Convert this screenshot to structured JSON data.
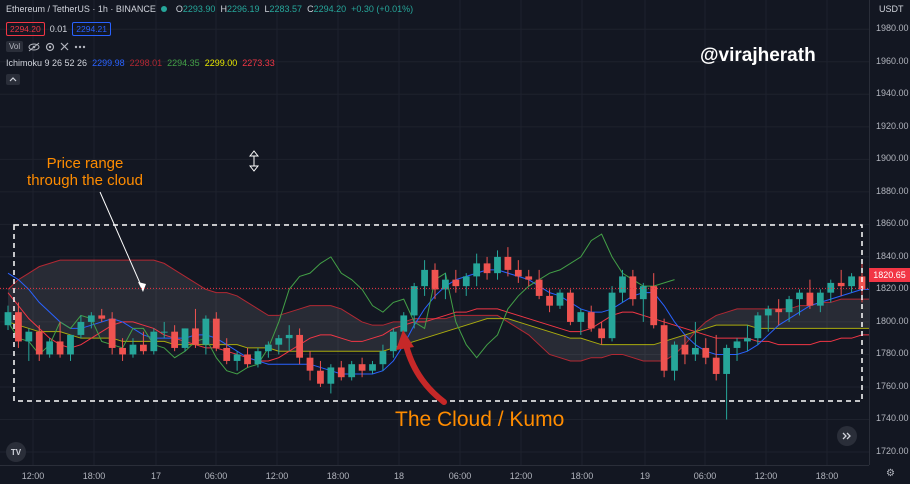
{
  "header": {
    "symbol": "Ethereum / TetherUS · 1h · BINANCE",
    "ohlc": {
      "o_label": "O",
      "o": "2293.90",
      "h_label": "H",
      "h": "2296.19",
      "l_label": "L",
      "l": "2283.57",
      "c_label": "C",
      "c": "2294.20",
      "change": "+0.30 (+0.01%)"
    },
    "sell_price": "2294.20",
    "spread": "0.01",
    "buy_price": "2294.21"
  },
  "toolbar": {
    "vol_label": "Vol"
  },
  "indicator": {
    "name": "Ichimoku 9 26 52 26",
    "values": [
      "2299.98",
      "2298.01",
      "2294.35",
      "2299.00",
      "2273.33"
    ],
    "colors": [
      "#2962ff",
      "#b22833",
      "#43a047",
      "#e6e600",
      "#f23645"
    ]
  },
  "watermark": "@virajherath",
  "annotations": {
    "price_range": "Price range\nthrough the cloud",
    "cloud": "The Cloud / Kumo"
  },
  "price_axis": {
    "currency": "USDT",
    "ticks": [
      "1980.00",
      "1960.00",
      "1940.00",
      "1920.00",
      "1900.00",
      "1880.00",
      "1860.00",
      "1840.00",
      "1820.00",
      "1800.00",
      "1780.00",
      "1760.00",
      "1740.00",
      "1720.00"
    ],
    "current_price": "1820.65"
  },
  "time_axis": {
    "labels": [
      "12:00",
      "18:00",
      "17",
      "06:00",
      "12:00",
      "18:00",
      "18",
      "06:00",
      "12:00",
      "18:00",
      "19",
      "06:00",
      "12:00",
      "18:00"
    ]
  },
  "colors": {
    "up": "#26a69a",
    "down": "#ef5350",
    "background": "#131722",
    "annotation": "#ff8c00",
    "arrow": "#c62828"
  },
  "chart_data": {
    "type": "candlestick",
    "ylim": [
      1712,
      1998
    ],
    "candles": [
      [
        1798,
        1810,
        1795,
        1806
      ],
      [
        1806,
        1812,
        1784,
        1788
      ],
      [
        1788,
        1796,
        1776,
        1794
      ],
      [
        1794,
        1798,
        1776,
        1780
      ],
      [
        1780,
        1790,
        1778,
        1788
      ],
      [
        1788,
        1800,
        1778,
        1780
      ],
      [
        1780,
        1792,
        1776,
        1792
      ],
      [
        1792,
        1804,
        1790,
        1800
      ],
      [
        1800,
        1806,
        1796,
        1804
      ],
      [
        1804,
        1808,
        1800,
        1802
      ],
      [
        1802,
        1806,
        1780,
        1784
      ],
      [
        1784,
        1790,
        1776,
        1780
      ],
      [
        1780,
        1790,
        1778,
        1786
      ],
      [
        1786,
        1794,
        1780,
        1782
      ],
      [
        1782,
        1796,
        1780,
        1794
      ],
      [
        1794,
        1800,
        1790,
        1794
      ],
      [
        1794,
        1798,
        1782,
        1784
      ],
      [
        1784,
        1796,
        1782,
        1796
      ],
      [
        1796,
        1808,
        1784,
        1786
      ],
      [
        1786,
        1804,
        1780,
        1802
      ],
      [
        1802,
        1806,
        1782,
        1784
      ],
      [
        1784,
        1790,
        1774,
        1776
      ],
      [
        1776,
        1782,
        1770,
        1780
      ],
      [
        1780,
        1784,
        1772,
        1774
      ],
      [
        1774,
        1784,
        1772,
        1782
      ],
      [
        1782,
        1788,
        1778,
        1786
      ],
      [
        1786,
        1792,
        1780,
        1790
      ],
      [
        1790,
        1798,
        1782,
        1792
      ],
      [
        1792,
        1796,
        1774,
        1778
      ],
      [
        1778,
        1782,
        1764,
        1770
      ],
      [
        1770,
        1776,
        1760,
        1762
      ],
      [
        1762,
        1774,
        1756,
        1772
      ],
      [
        1772,
        1776,
        1764,
        1766
      ],
      [
        1766,
        1776,
        1764,
        1774
      ],
      [
        1774,
        1778,
        1766,
        1770
      ],
      [
        1770,
        1776,
        1768,
        1774
      ],
      [
        1774,
        1786,
        1770,
        1782
      ],
      [
        1782,
        1796,
        1778,
        1794
      ],
      [
        1794,
        1806,
        1790,
        1804
      ],
      [
        1804,
        1824,
        1796,
        1822
      ],
      [
        1822,
        1838,
        1816,
        1832
      ],
      [
        1832,
        1836,
        1814,
        1820
      ],
      [
        1820,
        1830,
        1814,
        1826
      ],
      [
        1826,
        1832,
        1818,
        1822
      ],
      [
        1822,
        1830,
        1816,
        1828
      ],
      [
        1828,
        1842,
        1822,
        1836
      ],
      [
        1836,
        1840,
        1826,
        1830
      ],
      [
        1830,
        1844,
        1826,
        1840
      ],
      [
        1840,
        1846,
        1828,
        1832
      ],
      [
        1832,
        1838,
        1824,
        1828
      ],
      [
        1828,
        1832,
        1822,
        1826
      ],
      [
        1826,
        1832,
        1814,
        1816
      ],
      [
        1816,
        1820,
        1806,
        1810
      ],
      [
        1810,
        1820,
        1808,
        1818
      ],
      [
        1818,
        1820,
        1798,
        1800
      ],
      [
        1800,
        1808,
        1792,
        1806
      ],
      [
        1806,
        1810,
        1794,
        1796
      ],
      [
        1796,
        1800,
        1786,
        1790
      ],
      [
        1790,
        1822,
        1788,
        1818
      ],
      [
        1818,
        1832,
        1812,
        1828
      ],
      [
        1828,
        1832,
        1810,
        1814
      ],
      [
        1814,
        1824,
        1800,
        1822
      ],
      [
        1822,
        1830,
        1796,
        1798
      ],
      [
        1798,
        1802,
        1766,
        1770
      ],
      [
        1770,
        1788,
        1764,
        1786
      ],
      [
        1786,
        1792,
        1774,
        1780
      ],
      [
        1780,
        1800,
        1776,
        1784
      ],
      [
        1784,
        1790,
        1774,
        1778
      ],
      [
        1778,
        1792,
        1764,
        1768
      ],
      [
        1768,
        1786,
        1740,
        1784
      ],
      [
        1784,
        1790,
        1776,
        1788
      ],
      [
        1788,
        1798,
        1782,
        1790
      ],
      [
        1790,
        1806,
        1786,
        1804
      ],
      [
        1804,
        1810,
        1794,
        1808
      ],
      [
        1808,
        1814,
        1798,
        1806
      ],
      [
        1806,
        1816,
        1800,
        1814
      ],
      [
        1814,
        1820,
        1804,
        1818
      ],
      [
        1818,
        1826,
        1808,
        1810
      ],
      [
        1810,
        1820,
        1806,
        1818
      ],
      [
        1818,
        1826,
        1812,
        1824
      ],
      [
        1824,
        1832,
        1816,
        1822
      ],
      [
        1822,
        1830,
        1818,
        1828
      ],
      [
        1828,
        1838,
        1812,
        1820
      ]
    ],
    "series": [
      {
        "name": "",
        "color": "#f23645",
        "values": [
          1818,
          1810,
          1802,
          1796,
          1790,
          1786,
          1784,
          1786,
          1790,
          1794,
          1798,
          1800,
          1800,
          1798,
          1796,
          1792,
          1790,
          1788,
          1786,
          1784,
          1784,
          1782,
          1780,
          1778,
          1776,
          1776,
          1778,
          1782,
          1786,
          1790,
          1792,
          1792,
          1790,
          1788,
          1788,
          1790,
          1792,
          1796,
          1798,
          1800,
          1800,
          1802,
          1804,
          1806,
          1806,
          1808,
          1808,
          1808,
          1806,
          1804,
          1802,
          1800,
          1798,
          1796,
          1794,
          1794,
          1796,
          1800,
          1804,
          1806,
          1806,
          1804,
          1802,
          1800,
          1798,
          1796,
          1794,
          1792,
          1790,
          1790,
          1790,
          1790,
          1788,
          1788,
          1786,
          1786,
          1786,
          1786,
          1788,
          1788,
          1790,
          1790,
          1792,
          1792
        ]
      }
    ],
    "cloud": {
      "span_a": [
        1820,
        1826,
        1830,
        1834,
        1836,
        1838,
        1838,
        1838,
        1838,
        1838,
        1838,
        1838,
        1838,
        1838,
        1838,
        1836,
        1832,
        1828,
        1824,
        1820,
        1818,
        1818,
        1816,
        1812,
        1808,
        1804,
        1804,
        1806,
        1808,
        1810,
        1810,
        1810,
        1808,
        1804,
        1800,
        1798,
        1798,
        1800,
        1800,
        1802,
        1802,
        1802,
        1802,
        1804,
        1804,
        1804,
        1804,
        1804,
        1800,
        1796,
        1792,
        1786,
        1780,
        1778,
        1776,
        1776,
        1778,
        1778,
        1780,
        1780,
        1778,
        1776,
        1776,
        1776,
        1780,
        1786,
        1794,
        1800,
        1804,
        1806,
        1808,
        1808,
        1808,
        1808,
        1808,
        1808,
        1810,
        1810,
        1812,
        1812,
        1814,
        1814,
        1814,
        1814
      ],
      "span_b": [
        1800,
        1798,
        1796,
        1794,
        1794,
        1794,
        1792,
        1790,
        1790,
        1790,
        1790,
        1788,
        1788,
        1788,
        1788,
        1788,
        1786,
        1786,
        1786,
        1786,
        1786,
        1786,
        1786,
        1784,
        1784,
        1784,
        1782,
        1782,
        1782,
        1782,
        1782,
        1782,
        1782,
        1782,
        1782,
        1782,
        1782,
        1784,
        1786,
        1788,
        1790,
        1792,
        1794,
        1796,
        1798,
        1800,
        1802,
        1802,
        1802,
        1800,
        1798,
        1796,
        1794,
        1792,
        1790,
        1790,
        1788,
        1786,
        1786,
        1786,
        1786,
        1786,
        1786,
        1788,
        1790,
        1792,
        1794,
        1796,
        1798,
        1798,
        1798,
        1798,
        1796,
        1796,
        1796,
        1796,
        1796,
        1796,
        1796,
        1796,
        1796,
        1796,
        1796,
        1796
      ]
    },
    "conversion": [
      1830,
      1826,
      1820,
      1812,
      1806,
      1800,
      1796,
      1796,
      1798,
      1800,
      1802,
      1800,
      1796,
      1792,
      1790,
      1790,
      1790,
      1790,
      1792,
      1792,
      1790,
      1786,
      1782,
      1778,
      1776,
      1774,
      1774,
      1774,
      1774,
      1774,
      1772,
      1770,
      1768,
      1768,
      1768,
      1768,
      1770,
      1776,
      1786,
      1798,
      1808,
      1816,
      1822,
      1826,
      1828,
      1830,
      1832,
      1832,
      1830,
      1828,
      1826,
      1822,
      1818,
      1816,
      1812,
      1808,
      1806,
      1806,
      1808,
      1812,
      1816,
      1818,
      1818,
      1810,
      1800,
      1792,
      1786,
      1782,
      1780,
      1780,
      1780,
      1782,
      1786,
      1792,
      1798,
      1802,
      1806,
      1810,
      1812,
      1814,
      1816,
      1818,
      1820,
      1820
    ],
    "lagging": [
      1800,
      1790,
      1788,
      1780,
      1786,
      1800,
      1796,
      1804,
      1802,
      1788,
      1786,
      1784,
      1796,
      1796,
      1786,
      1784,
      1778,
      1782,
      1788,
      1790,
      1778,
      1770,
      1768,
      1772,
      1774,
      1784,
      1800,
      1820,
      1828,
      1830,
      1836,
      1840,
      1830,
      1826,
      1820,
      1810,
      1806,
      1812,
      1814,
      1800,
      1796,
      1826,
      1830,
      1800,
      1786,
      1778,
      1786,
      1792,
      1808,
      1816,
      1822,
      1826,
      1830,
      1832,
      1836,
      1840,
      1850,
      1854,
      1840,
      1830,
      1826,
      1822,
      1822,
      1824,
      1826
    ]
  }
}
